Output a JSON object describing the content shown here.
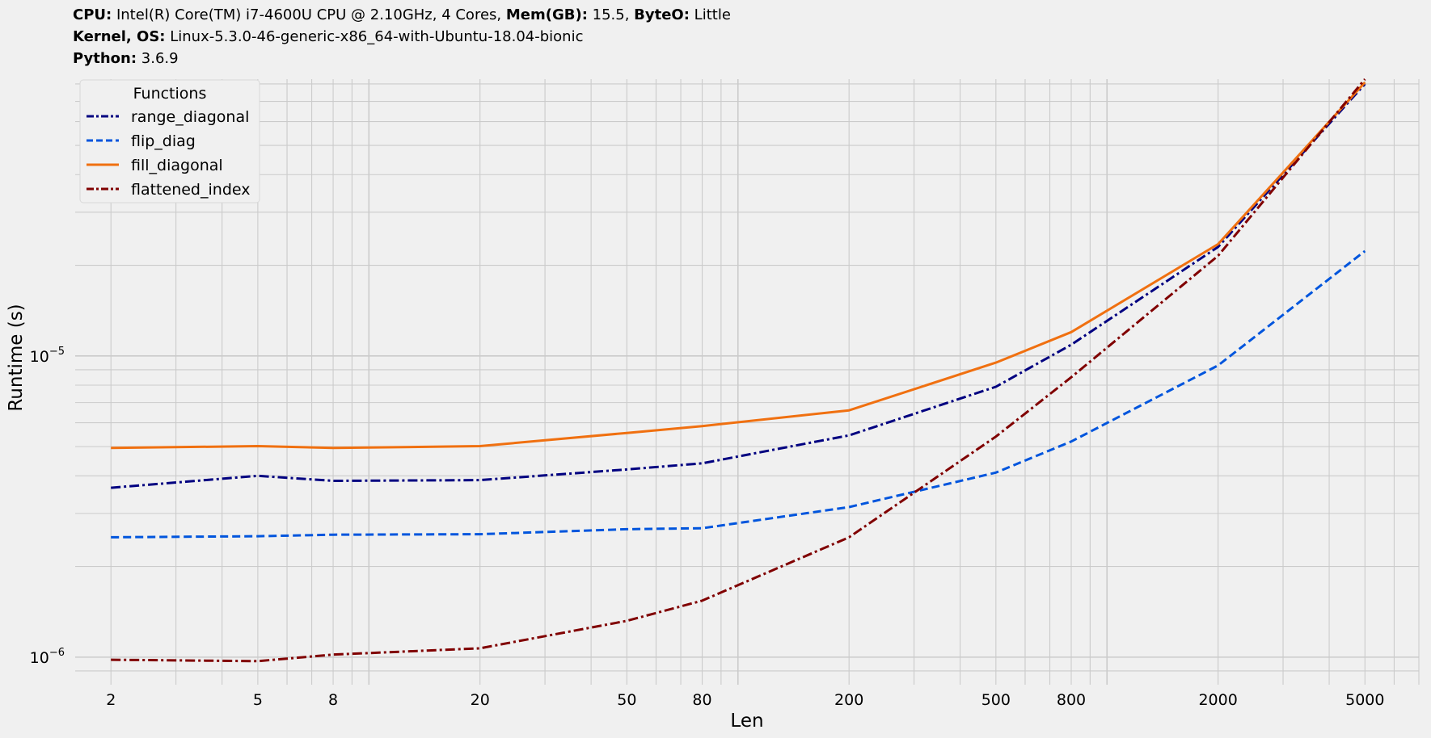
{
  "header": {
    "line1": [
      {
        "key": "CPU",
        "value": "Intel(R) Core(TM) i7-4600U CPU @ 2.10GHz, 4 Cores, "
      },
      {
        "key": "Mem(GB)",
        "value": "15.5, "
      },
      {
        "key": "ByteO",
        "value": "Little"
      }
    ],
    "line2": [
      {
        "key": "Kernel, OS",
        "value": "Linux-5.3.0-46-generic-x86_64-with-Ubuntu-18.04-bionic"
      }
    ],
    "line3": [
      {
        "key": "Python",
        "value": "3.6.9"
      }
    ],
    "sep": ":"
  },
  "chart_data": {
    "type": "line",
    "xscale": "log",
    "yscale": "log",
    "xlabel": "Len",
    "ylabel": "Runtime (s)",
    "xlim": [
      1.6,
      7000
    ],
    "ylim": [
      8.1e-07,
      8.3e-05
    ],
    "grid": true,
    "x_ticks": [
      2,
      5,
      8,
      20,
      50,
      80,
      200,
      500,
      800,
      2000,
      5000
    ],
    "x_tick_labels": [
      "2",
      "5",
      "8",
      "20",
      "50",
      "80",
      "200",
      "500",
      "800",
      "2000",
      "5000"
    ],
    "y_ticks": [
      1e-06,
      1e-05
    ],
    "y_tick_labels": [
      {
        "base": "10",
        "exp": "−6"
      },
      {
        "base": "10",
        "exp": "−5"
      }
    ],
    "legend": {
      "title": "Functions",
      "position": "top-left"
    },
    "x": [
      2,
      5,
      8,
      20,
      50,
      80,
      200,
      500,
      800,
      2000,
      5000
    ],
    "series": [
      {
        "name": "range_diagonal",
        "color": "#000080",
        "dash": "dashdot",
        "values": [
          3.65e-06,
          4e-06,
          3.85e-06,
          3.87e-06,
          4.2e-06,
          4.4e-06,
          5.45e-06,
          7.9e-06,
          1.09e-05,
          2.3e-05,
          8e-05
        ]
      },
      {
        "name": "flip_diag",
        "color": "#0055dd",
        "dash": "dashed",
        "values": [
          2.5e-06,
          2.52e-06,
          2.55e-06,
          2.56e-06,
          2.66e-06,
          2.68e-06,
          3.15e-06,
          4.1e-06,
          5.2e-06,
          9.3e-06,
          2.23e-05
        ]
      },
      {
        "name": "fill_diagonal",
        "color": "#f07010",
        "dash": "solid",
        "values": [
          4.95e-06,
          5.02e-06,
          4.95e-06,
          5.02e-06,
          5.55e-06,
          5.85e-06,
          6.6e-06,
          9.5e-06,
          1.2e-05,
          2.35e-05,
          8.1e-05
        ]
      },
      {
        "name": "flattened_index",
        "color": "#800000",
        "dash": "dashdot",
        "values": [
          9.8e-07,
          9.7e-07,
          1.02e-06,
          1.07e-06,
          1.32e-06,
          1.54e-06,
          2.5e-06,
          5.4e-06,
          8.5e-06,
          2.15e-05,
          8.3e-05
        ]
      }
    ]
  }
}
